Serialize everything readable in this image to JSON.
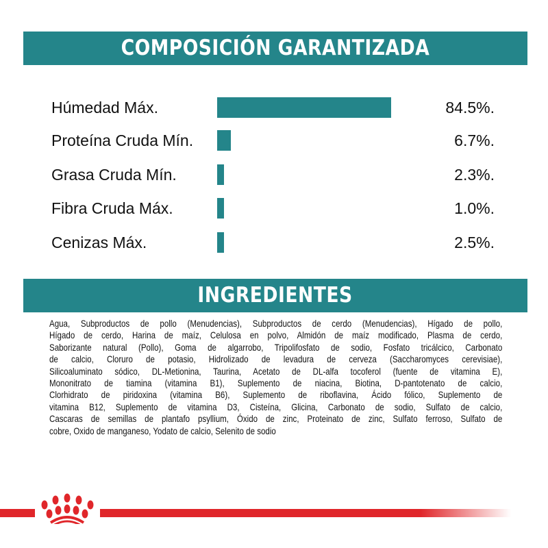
{
  "composition": {
    "title": "COMPOSICIÓN GARANTIZADA",
    "bar_color": "#24858a",
    "items": [
      {
        "label": "Húmedad Máx.",
        "value": "84.5%.",
        "percent": 84.5
      },
      {
        "label": "Proteína Cruda Mín.",
        "value": "6.7%.",
        "percent": 6.7
      },
      {
        "label": "Grasa Cruda Mín.",
        "value": "2.3%.",
        "percent": 2.3
      },
      {
        "label": "Fibra Cruda Máx.",
        "value": "1.0%.",
        "percent": 1.0
      },
      {
        "label": "Cenizas Máx.",
        "value": "2.5%.",
        "percent": 2.5
      }
    ]
  },
  "ingredients": {
    "title": "INGREDIENTES",
    "lines": [
      "Agua, Subproductos de pollo (Menudencias), Subproductos de cerdo (Menudencias), Hígado de pollo,",
      "Hígado de cerdo, Harina de maíz, Celulosa en polvo, Almidón de maíz modificado, Plasma de cerdo,",
      "Saborizante natural (Pollo), Goma de algarrobo, Tripolifosfato de sodio, Fosfato tricálcico, Carbonato",
      "de calcio, Cloruro de potasio, Hidrolizado de levadura de cerveza (Saccharomyces cerevisiae),",
      "Silicoaluminato sódico, DL-Metionina, Taurina, Acetato de DL-alfa tocoferol (fuente de vitamina E),",
      "Mononitrato de tiamina (vitamina B1), Suplemento de niacina, Biotina, D-pantotenato de calcio,",
      "Clorhidrato de piridoxina (vitamina B6), Suplemento de riboflavina, Ácido fólico, Suplemento de",
      "vitamina B12, Suplemento de vitamina D3, Cisteína, Glicina, Carbonato de sodio, Sulfato de calcio,",
      "Cascaras de semillas de plantafo psyllium, Óxido de zinc, Proteinato de zinc, Sulfato ferroso, Sulfato de",
      "cobre, Oxido de manganeso, Yodato de calcio, Selenito de sodio"
    ]
  },
  "brand": {
    "logo": "royal-canin-crown-logo",
    "color": "#e0262a"
  }
}
